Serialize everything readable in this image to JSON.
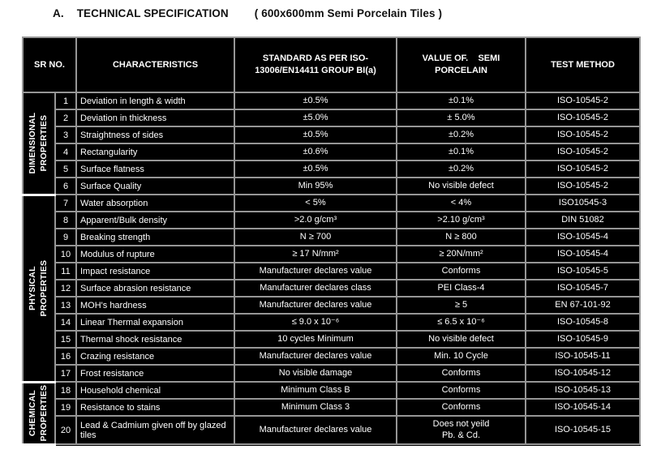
{
  "title": {
    "index": "A.",
    "main": "TECHNICAL SPECIFICATION",
    "subtitle": "( 600x600mm Semi Porcelain Tiles )"
  },
  "colors": {
    "page_background": "#ffffff",
    "table_background": "#000000",
    "grid_line": "#969696",
    "section_separator": "#ffffff",
    "table_text": "#ffffff",
    "title_text": "#111111"
  },
  "table": {
    "headers": {
      "sr_no": "SR NO.",
      "characteristics": "CHARACTERISTICS",
      "standard": "STANDARD AS PER ISO-\n13006/EN14411 GROUP BI(a)",
      "value": "VALUE OF.    SEMI\nPORCELAIN",
      "test_method": "TEST METHOD"
    },
    "sections": [
      {
        "id": "dimensional",
        "label": "DIMENSIONAL\nPROPERTIES",
        "rows": [
          {
            "no": "1",
            "characteristic": "Deviation in length & width",
            "standard": "±0.5%",
            "value": "±0.1%",
            "test_method": "ISO-10545-2"
          },
          {
            "no": "2",
            "characteristic": "Deviation in thickness",
            "standard": "±5.0%",
            "value": "± 5.0%",
            "test_method": "ISO-10545-2"
          },
          {
            "no": "3",
            "characteristic": "Straightness of sides",
            "standard": "±0.5%",
            "value": "±0.2%",
            "test_method": "ISO-10545-2"
          },
          {
            "no": "4",
            "characteristic": "Rectangularity",
            "standard": "±0.6%",
            "value": "±0.1%",
            "test_method": "ISO-10545-2"
          },
          {
            "no": "5",
            "characteristic": "Surface flatness",
            "standard": "±0.5%",
            "value": "±0.2%",
            "test_method": "ISO-10545-2"
          },
          {
            "no": "6",
            "characteristic": "Surface Quality",
            "standard": "Min 95%",
            "value": "No visible defect",
            "test_method": "ISO-10545-2"
          }
        ]
      },
      {
        "id": "physical",
        "label": "PHYSICAL PROPERTIES",
        "rows": [
          {
            "no": "7",
            "characteristic": "Water absorption",
            "standard": "< 5%",
            "value": "< 4%",
            "test_method": "ISO10545-3"
          },
          {
            "no": "8",
            "characteristic": "Apparent/Bulk  density",
            "standard": ">2.0 g/cm³",
            "value": ">2.10 g/cm³",
            "test_method": "DIN 51082"
          },
          {
            "no": "9",
            "characteristic": "Breaking strength",
            "standard": "N ≥ 700",
            "value": "N ≥ 800",
            "test_method": "ISO-10545-4"
          },
          {
            "no": "10",
            "characteristic": "Modulus of rupture",
            "standard": "≥ 17 N/mm²",
            "value": "≥ 20N/mm²",
            "test_method": "ISO-10545-4"
          },
          {
            "no": "11",
            "characteristic": "Impact resistance",
            "standard": "Manufacturer declares value",
            "value": "Conforms",
            "test_method": "ISO-10545-5"
          },
          {
            "no": "12",
            "characteristic": "Surface abrasion resistance",
            "standard": "Manufacturer declares class",
            "value": "PEI Class-4",
            "test_method": "ISO-10545-7"
          },
          {
            "no": "13",
            "characteristic": "MOH's hardness",
            "standard": "Manufacturer declares value",
            "value": "≥ 5",
            "test_method": "EN 67-101-92"
          },
          {
            "no": "14",
            "characteristic": "Linear Thermal expansion",
            "standard": "≤ 9.0 x 10⁻⁶",
            "value": "≤ 6.5 x 10⁻⁶",
            "test_method": "ISO-10545-8"
          },
          {
            "no": "15",
            "characteristic": "Thermal shock resistance",
            "standard": "10 cycles Minimum",
            "value": "No visible defect",
            "test_method": "ISO-10545-9"
          },
          {
            "no": "16",
            "characteristic": "Crazing resistance",
            "standard": "Manufacturer declares value",
            "value": "Min. 10 Cycle",
            "test_method": "ISO-10545-11"
          },
          {
            "no": "17",
            "characteristic": "Frost resistance",
            "standard": "No visible damage",
            "value": "Conforms",
            "test_method": "ISO-10545-12"
          }
        ]
      },
      {
        "id": "chemical",
        "label": "CHEMICAL\nPROPERTIES",
        "rows": [
          {
            "no": "18",
            "characteristic": "Household chemical",
            "standard": "Minimum Class B",
            "value": "Conforms",
            "test_method": "ISO-10545-13"
          },
          {
            "no": "19",
            "characteristic": "Resistance to stains",
            "standard": "Minimum Class 3",
            "value": "Conforms",
            "test_method": "ISO-10545-14"
          },
          {
            "no": "20",
            "characteristic": "Lead & Cadmium given off by glazed\ntiles",
            "standard": "Manufacturer declares value",
            "value": "Does not yeild\nPb. & Cd.",
            "test_method": "ISO-10545-15",
            "tall": true
          }
        ]
      }
    ]
  }
}
